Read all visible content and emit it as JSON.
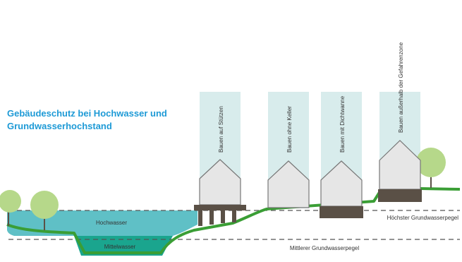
{
  "title": {
    "line1": "Gebäudeschutz bei Hochwasser und",
    "line2": "Grundwasserhochstand"
  },
  "buildings": [
    {
      "label": "Bauen auf Stützen"
    },
    {
      "label": "Bauen ohne Keller"
    },
    {
      "label": "Bauen mit Dichtwanne"
    },
    {
      "label": "Bauen außerhalb der Gefahrenzone"
    }
  ],
  "water": {
    "flood": "Hochwasser",
    "mean": "Mittelwasser"
  },
  "groundwater": {
    "highest": "Höchster Grundwasserpegel",
    "mean": "Mittlerer Grundwasserpegel"
  },
  "colors": {
    "title": "#1e9ad6",
    "ground_line": "#3a9e35",
    "flood_water": "#5fc0c6",
    "mean_water": "#1aa58e",
    "zone_band": "#d8ecec",
    "house_fill": "#e6e6e6",
    "foundation": "#5a5046",
    "tree": "#b6d88a"
  }
}
